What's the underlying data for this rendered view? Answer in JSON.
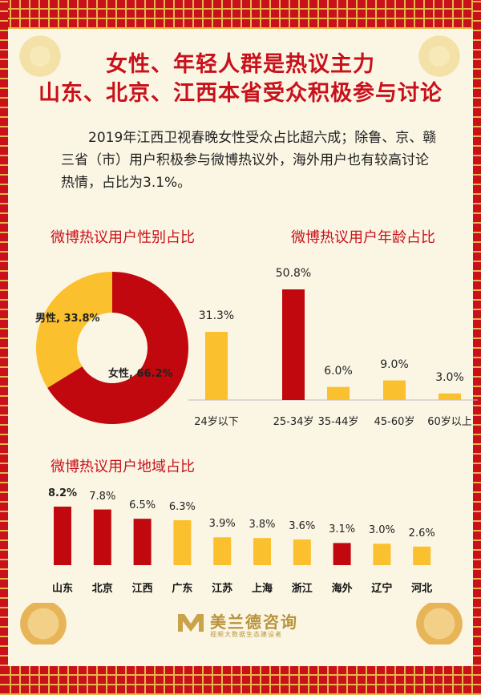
{
  "title_lines": [
    "女性、年轻人群是热议主力",
    "山东、北京、江西本省受众积极参与讨论"
  ],
  "intro": "2019年江西卫视春晚女性受众占比超六成；除鲁、京、赣三省（市）用户积极参与微博热议外，海外用户也有较高讨论热情，占比为3.1%。",
  "brand": {
    "name": "美兰德咨询",
    "tagline": "视频大数据生态建设者"
  },
  "colors": {
    "red": "#c0080e",
    "yellow": "#fbc02d",
    "title": "#c8111b"
  },
  "chart_data": [
    {
      "type": "pie",
      "title": "微博热议用户性别占比",
      "slices": [
        {
          "label": "女性",
          "value": 66.2,
          "text": "女性, 66.2%",
          "color": "#c0080e"
        },
        {
          "label": "男性",
          "value": 33.8,
          "text": "男性, 33.8%",
          "color": "#fbc02d"
        }
      ]
    },
    {
      "type": "bar",
      "title": "微博热议用户年龄占比",
      "categories": [
        "24岁以下",
        "25-34岁",
        "35-44岁",
        "45-60岁",
        "60岁以上"
      ],
      "values": [
        31.3,
        50.8,
        6.0,
        9.0,
        3.0
      ],
      "labels": [
        "31.3%",
        "50.8%",
        "6.0%",
        "9.0%",
        "3.0%"
      ],
      "colors": [
        "#fbc02d",
        "#c0080e",
        "#fbc02d",
        "#fbc02d",
        "#fbc02d"
      ]
    },
    {
      "type": "bar",
      "title": "微博热议用户地域占比",
      "categories": [
        "山东",
        "北京",
        "江西",
        "广东",
        "江苏",
        "上海",
        "浙江",
        "海外",
        "辽宁",
        "河北"
      ],
      "values": [
        8.2,
        7.8,
        6.5,
        6.3,
        3.9,
        3.8,
        3.6,
        3.1,
        3.0,
        2.6
      ],
      "labels": [
        "8.2%",
        "7.8%",
        "6.5%",
        "6.3%",
        "3.9%",
        "3.8%",
        "3.6%",
        "3.1%",
        "3.0%",
        "2.6%"
      ],
      "colors": [
        "#c0080e",
        "#c0080e",
        "#c0080e",
        "#fbc02d",
        "#fbc02d",
        "#fbc02d",
        "#fbc02d",
        "#c0080e",
        "#fbc02d",
        "#fbc02d"
      ]
    }
  ]
}
